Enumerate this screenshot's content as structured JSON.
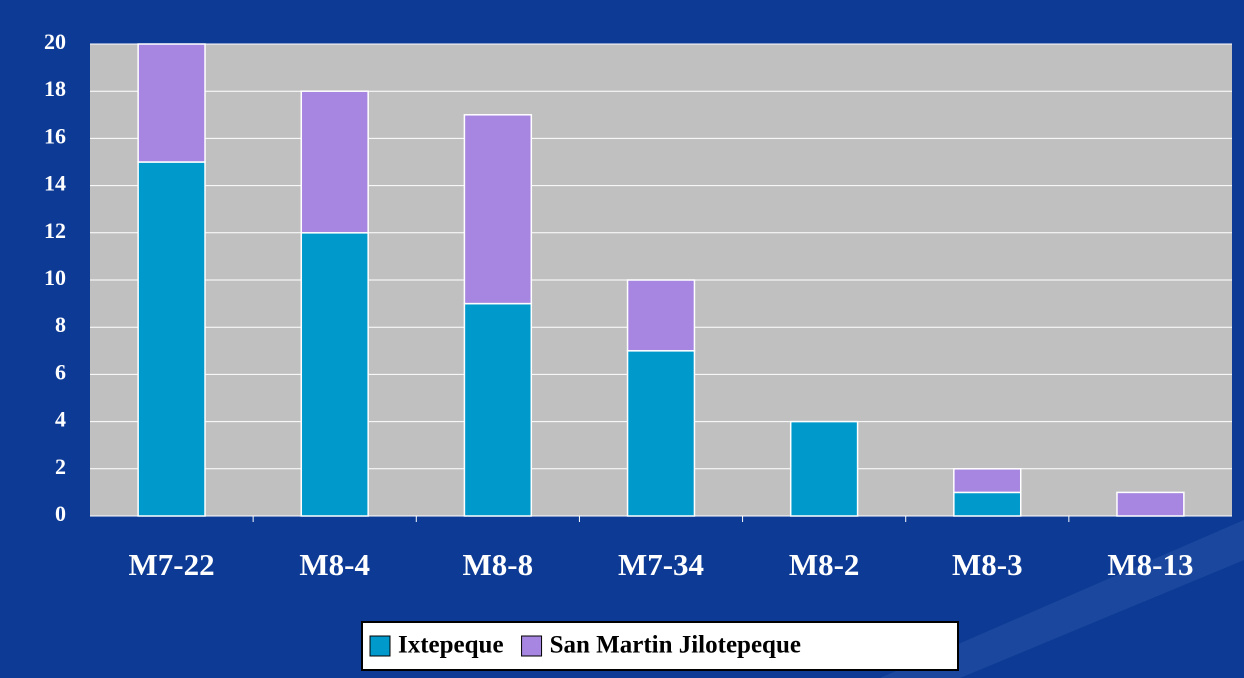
{
  "chart_data": {
    "type": "stacked_bar",
    "categories": [
      "M7-22",
      "M8-4",
      "M8-8",
      "M7-34",
      "M8-2",
      "M8-3",
      "M8-13"
    ],
    "series": [
      {
        "name": "Ixtepeque",
        "color": "#0099cc",
        "values": [
          15,
          12,
          9,
          7,
          4,
          1,
          0
        ]
      },
      {
        "name": "San Martin Jilotepeque",
        "color": "#a686e0",
        "values": [
          5,
          6,
          8,
          3,
          0,
          1,
          1
        ]
      }
    ],
    "ylim": [
      0,
      20
    ],
    "yticks": [
      0,
      2,
      4,
      6,
      8,
      10,
      12,
      14,
      16,
      18,
      20
    ],
    "grid": true,
    "legend": "bottom"
  }
}
